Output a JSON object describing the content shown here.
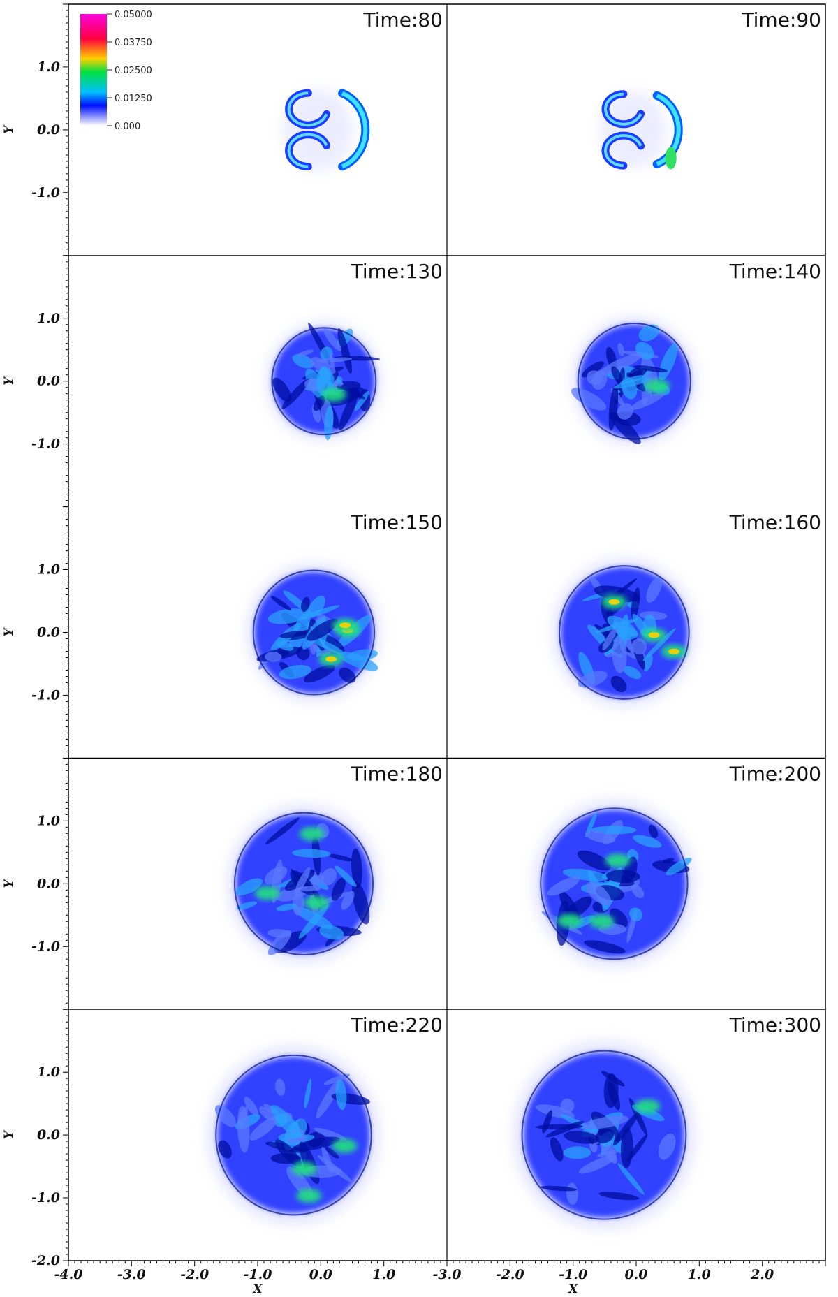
{
  "chart_data": {
    "type": "heatmap",
    "layout": {
      "rows": 5,
      "cols": 2
    },
    "colorbar": {
      "ticks": [
        "0.05000",
        "0.03750",
        "0.02500",
        "0.01250",
        "0.000"
      ],
      "range": [
        0.0,
        0.05
      ],
      "colors": [
        "#ff00e0",
        "#ff0040",
        "#ffd000",
        "#00e040",
        "#00c0ff",
        "#0010ff",
        "#ffffff"
      ]
    },
    "x_axis": {
      "label": "X",
      "left_ticks": [
        "-4.0",
        "-3.0",
        "-2.0",
        "-1.0",
        "0.0",
        "1.0"
      ],
      "right_ticks": [
        "-3.0",
        "-2.0",
        "-1.0",
        "0.0",
        "1.0",
        "2.0"
      ]
    },
    "y_axis": {
      "label": "Y",
      "ticks": [
        "1.0",
        "0.0",
        "-1.0"
      ],
      "bottom_tick": "-2.0"
    },
    "panels": [
      {
        "time": "Time:80",
        "stage": 0
      },
      {
        "time": "Time:90",
        "stage": 1
      },
      {
        "time": "Time:130",
        "stage": 2
      },
      {
        "time": "Time:140",
        "stage": 3
      },
      {
        "time": "Time:150",
        "stage": 4
      },
      {
        "time": "Time:160",
        "stage": 5
      },
      {
        "time": "Time:180",
        "stage": 6
      },
      {
        "time": "Time:200",
        "stage": 7
      },
      {
        "time": "Time:220",
        "stage": 8
      },
      {
        "time": "Time:300",
        "stage": 9
      }
    ]
  }
}
